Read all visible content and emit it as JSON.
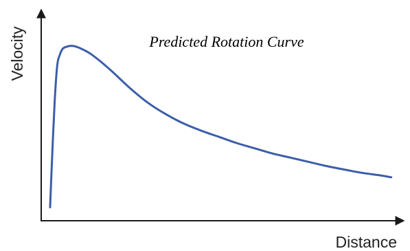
{
  "chart_data": {
    "type": "line",
    "title": "Predicted Rotation Curve",
    "xlabel": "Distance",
    "ylabel": "Velocity",
    "xlim": [
      0,
      100
    ],
    "ylim": [
      0,
      100
    ],
    "grid": false,
    "legend": "none",
    "line_color": "#3b5ea8",
    "series": [
      {
        "x": [
          2.5,
          3.1,
          3.8,
          4.5,
          5.2,
          6.0,
          7.0,
          8.5,
          10.0,
          12.0,
          14.0,
          17.0,
          20.0,
          25.0,
          30.0,
          35.0,
          40.0,
          45.0,
          50.0,
          55.0,
          60.0,
          65.0,
          70.0,
          75.0,
          80.0,
          85.0,
          90.0,
          95.0,
          98.4
        ],
        "y": [
          6.5,
          32.0,
          58.0,
          75.0,
          80.0,
          83.0,
          84.0,
          84.5,
          84.0,
          82.5,
          80.5,
          76.5,
          72.0,
          64.0,
          57.0,
          51.5,
          47.0,
          43.5,
          40.5,
          37.5,
          35.0,
          32.5,
          30.5,
          28.5,
          26.5,
          24.8,
          23.2,
          22.0,
          21.0
        ]
      }
    ]
  }
}
